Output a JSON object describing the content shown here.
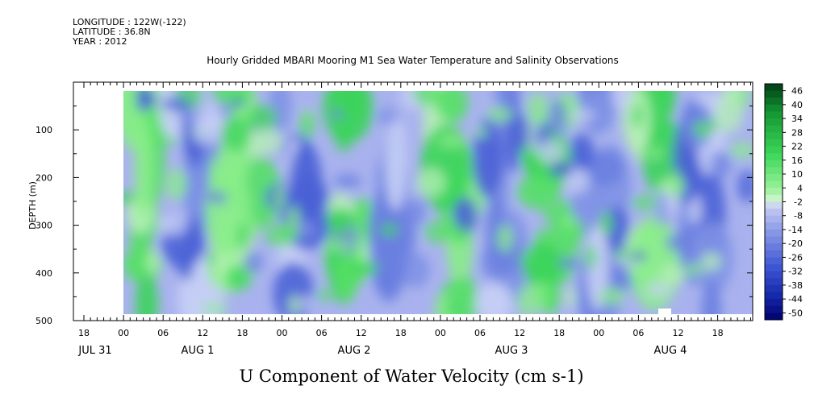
{
  "header": {
    "longitude": "LONGITUDE : 122W(-122)",
    "latitude": "LATITUDE : 36.8N",
    "year": "YEAR : 2012"
  },
  "chart_data": {
    "type": "heatmap",
    "title": "Hourly Gridded MBARI Mooring M1 Sea Water Temperature and Salinity Observations",
    "xlabel": "U Component of Water Velocity (cm s-1)",
    "ylabel": "DEPTH (m)",
    "y_axis": {
      "ticks": [
        100,
        200,
        300,
        400,
        500
      ],
      "ylim": [
        0,
        500
      ],
      "inverted": true
    },
    "x_axis": {
      "hour_ticks": [
        "18",
        "00",
        "06",
        "12",
        "18",
        "00",
        "06",
        "12",
        "18",
        "00",
        "06",
        "12",
        "18",
        "00",
        "06",
        "12",
        "18"
      ],
      "date_labels": [
        "JUL 31",
        "AUG  1",
        "AUG  2",
        "AUG  3",
        "AUG  4"
      ]
    },
    "colorbar": {
      "labels": [
        "46",
        "40",
        "34",
        "28",
        "22",
        "16",
        "10",
        "4",
        "-2",
        "-8",
        "-14",
        "-20",
        "-26",
        "-32",
        "-38",
        "-44",
        "-50"
      ],
      "range": [
        -50,
        50
      ]
    }
  }
}
